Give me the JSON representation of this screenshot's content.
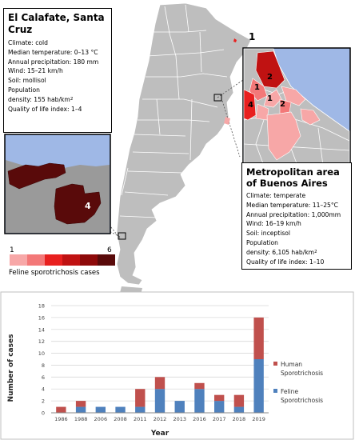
{
  "colors": {
    "sea": "#9fb8e6",
    "land": "#bebebe",
    "land_dark": "#a3a3a3",
    "border": "#ffffff",
    "human": "#c0504d",
    "feline": "#4f81bd",
    "map_legend": [
      "#f7a7a7",
      "#f37878",
      "#e8201f",
      "#c01212",
      "#8d0a0a",
      "#590a0a"
    ]
  },
  "calafate": {
    "title": "El Calafate, Santa Cruz",
    "climate": "Climate: cold",
    "median_temp": "Median temperature: 0–13 °C",
    "precip": "Annual precipitation: 180 mm",
    "wind": "Wind: 15–21 km/h",
    "soil": "Soil: mollisol",
    "pop_label": "Population",
    "pop_density": "density: 155 hab/km",
    "pop_sup": "2",
    "quality": "Quality of life index: 1–4",
    "inset_value": "4"
  },
  "buenos_aires": {
    "title": "Metropolitan area of Buenos Aires",
    "climate": "Climate: temperate",
    "median_temp": "Median temperature: 11–25°C",
    "precip": "Annual precipitation: 1,000mm",
    "wind": "Wind: 16–19 km/h",
    "soil": "Soil: inceptisol",
    "pop_label": "Population",
    "pop_density": "density: 6,105 hab/km",
    "pop_sup": "2",
    "quality": "Quality of life index: 1–10",
    "inset_labels": [
      "2",
      "1",
      "1",
      "4",
      "2"
    ]
  },
  "map": {
    "north_label": "1"
  },
  "map_legend": {
    "min": "1",
    "max": "6",
    "caption": "Feline sporotrichosis cases"
  },
  "chart_data": {
    "type": "bar",
    "stacked": true,
    "categories": [
      "1986",
      "1988",
      "2006",
      "2008",
      "2011",
      "2012",
      "2013",
      "2016",
      "2017",
      "2018",
      "2019"
    ],
    "series": [
      {
        "name": "Feline Sporotrichosis",
        "color": "#4f81bd",
        "values": [
          0,
          1,
          1,
          1,
          1,
          4,
          2,
          4,
          2,
          1,
          9
        ]
      },
      {
        "name": "Human Sporotrichosis",
        "color": "#c0504d",
        "values": [
          1,
          1,
          0,
          0,
          3,
          2,
          0,
          1,
          1,
          2,
          7
        ]
      }
    ],
    "xlabel": "Year",
    "ylabel": "Number of cases",
    "ylim": [
      0,
      18
    ],
    "yticks": [
      "0",
      "2",
      "4",
      "6",
      "8",
      "10",
      "12",
      "14",
      "16",
      "18"
    ],
    "grid": true,
    "legend": "right",
    "legend_entries": [
      {
        "line1": "Human",
        "line2": "Sporotrichosis",
        "color": "#c0504d"
      },
      {
        "line1": "Feline",
        "line2": "Sporotrichosis",
        "color": "#4f81bd"
      }
    ]
  }
}
